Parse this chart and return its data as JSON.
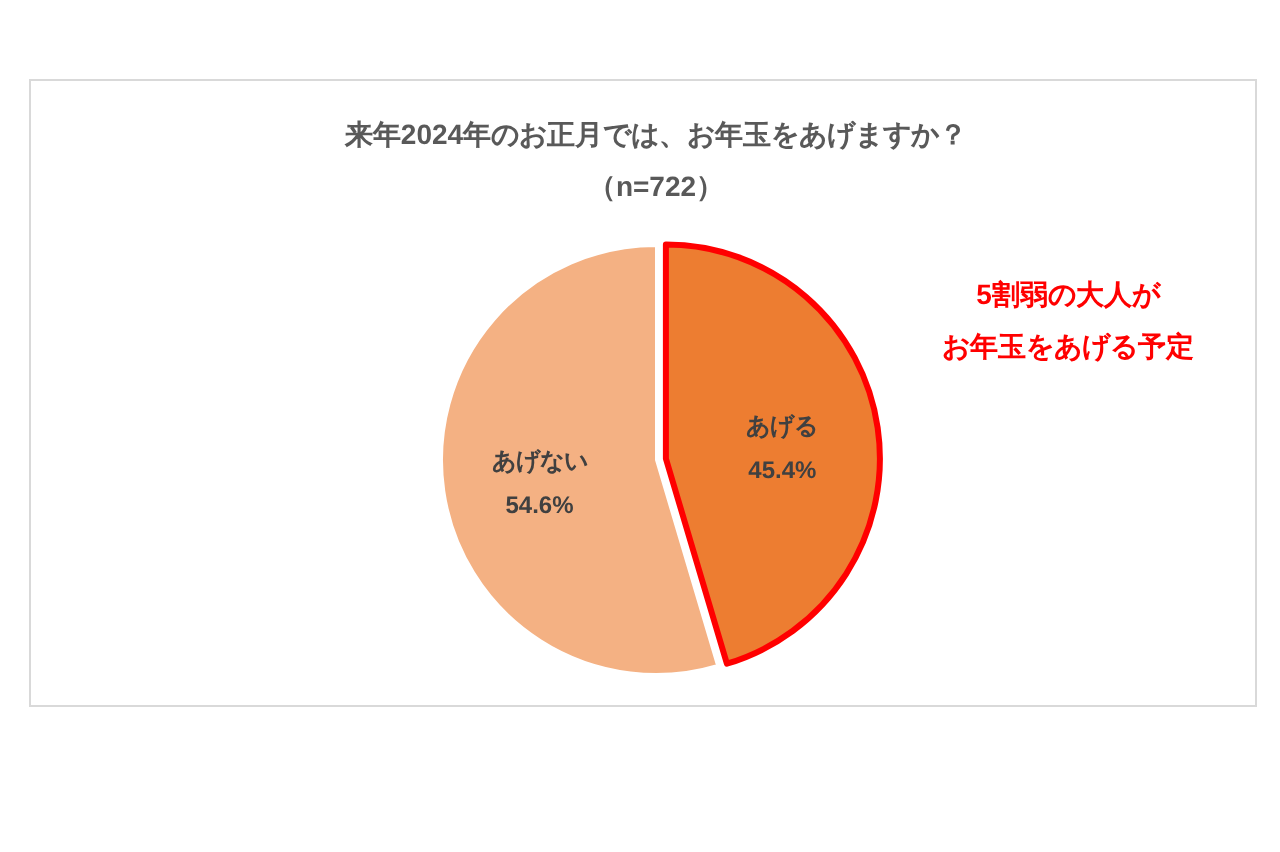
{
  "chart_data": {
    "type": "pie",
    "title": "来年2024年のお正月では、お年玉をあげますか？",
    "subtitle": "（n=722）",
    "categories": [
      "あげる",
      "あげない"
    ],
    "values": [
      45.4,
      54.6
    ],
    "colors": [
      "#ed7d31",
      "#f4b183"
    ],
    "value_labels": [
      "45.4%",
      "54.6%"
    ],
    "legend": false,
    "annotations": [
      "5割弱の大人が",
      "お年玉をあげる予定"
    ]
  }
}
